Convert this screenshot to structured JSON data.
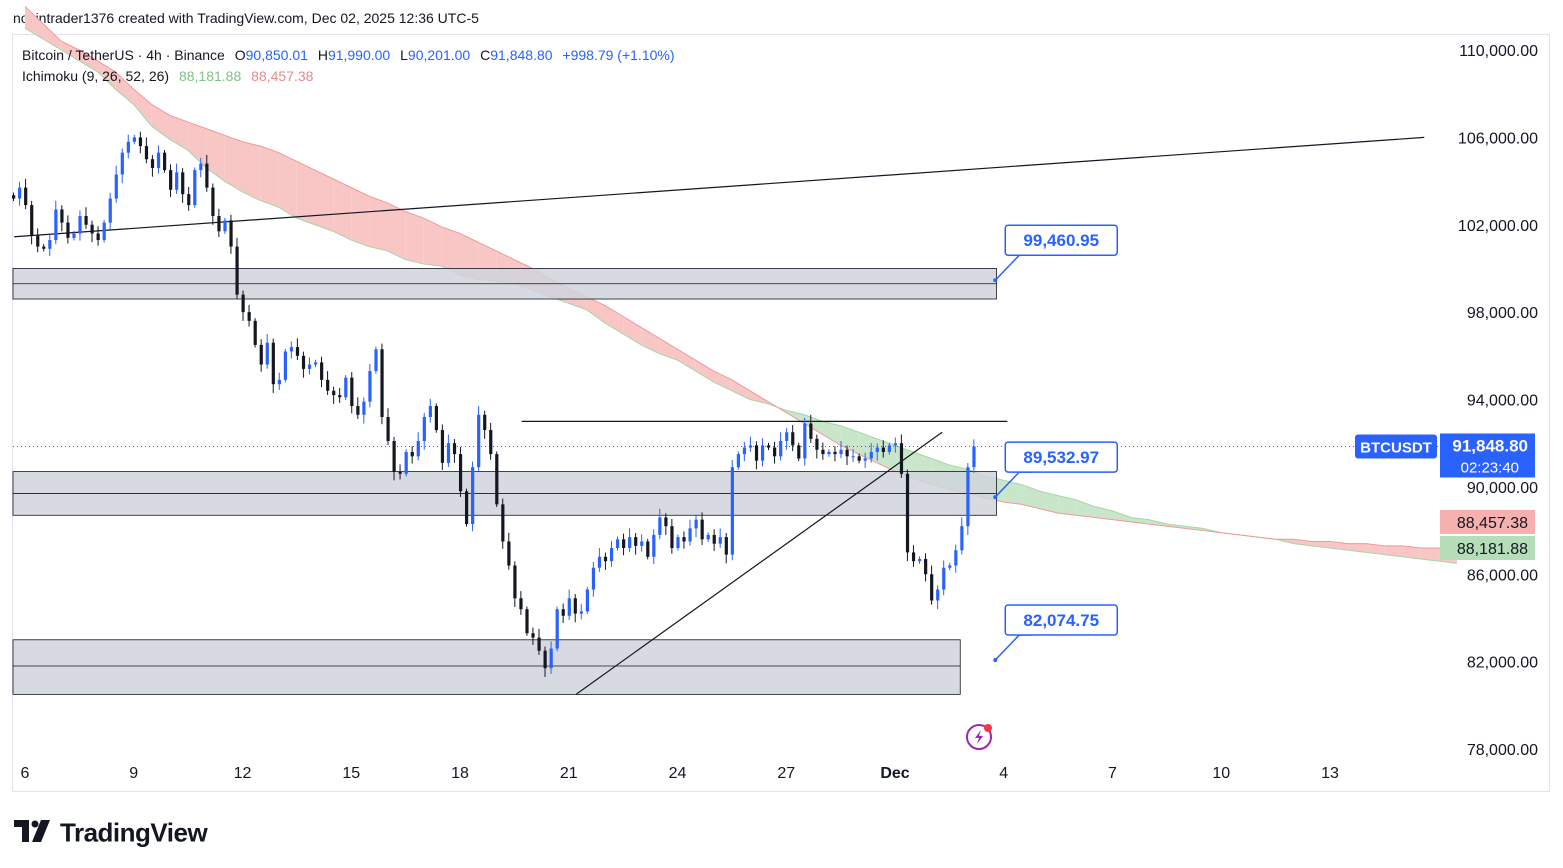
{
  "header": {
    "credit": "novintrader1376 created with TradingView.com, Dec 02, 2025 12:36 UTC-5"
  },
  "legend": {
    "symbol": "Bitcoin / TetherUS · 4h · Binance",
    "o_label": "O",
    "o": "90,850.01",
    "h_label": "H",
    "h": "91,990.00",
    "l_label": "L",
    "l": "90,201.00",
    "c_label": "C",
    "c": "91,848.80",
    "change": "+998.79 (+1.10%)",
    "indicator": "Ichimoku (9, 26, 52, 26)",
    "ind_v1": "88,181.88",
    "ind_v2": "88,457.38"
  },
  "colors": {
    "up": "#2962ff",
    "down": "#131722",
    "cloud_bear": "#f9c6c6",
    "cloud_bull": "#c9e6cb",
    "accent": "#2962ff",
    "red_tag": "#f7b0b0",
    "green_tag": "#b5deb8",
    "zone": "#d1d4dc"
  },
  "chart_data": {
    "type": "candlestick",
    "title": "Bitcoin / TetherUS · 4h · Binance",
    "yaxis": {
      "ticks": [
        110000,
        106000,
        102000,
        98000,
        94000,
        90000,
        86000,
        82000,
        78000
      ],
      "tick_labels": [
        "110,000.00",
        "106,000.00",
        "102,000.00",
        "98,000.00",
        "94,000.00",
        "90,000.00",
        "86,000.00",
        "82,000.00",
        "78,000.00"
      ],
      "range": [
        77500,
        111500
      ]
    },
    "xaxis": {
      "labels": [
        "6",
        "9",
        "12",
        "15",
        "18",
        "21",
        "24",
        "27",
        "Dec",
        "4",
        "7",
        "10",
        "13"
      ],
      "label_day_index": [
        0,
        3,
        6,
        9,
        12,
        15,
        18,
        21,
        24,
        27,
        30,
        33,
        36
      ]
    },
    "last_price": {
      "symbol": "BTCUSDT",
      "price": "91,848.80",
      "countdown": "02:23:40",
      "value": 91848.8
    },
    "ichimoku_tags": [
      {
        "label": "88,457.38",
        "value": 88457.38,
        "kind": "red"
      },
      {
        "label": "88,181.88",
        "value": 88181.88,
        "kind": "green"
      }
    ],
    "callouts": [
      {
        "label": "99,460.95",
        "value": 99460.95
      },
      {
        "label": "89,532.97",
        "value": 89532.97
      },
      {
        "label": "82,074.75",
        "value": 82074.75
      }
    ],
    "zones": [
      {
        "top": 100000,
        "bottom": 98600,
        "mid": 99300,
        "end_day": 26.8
      },
      {
        "top": 90700,
        "bottom": 88700,
        "mid": 89700,
        "end_day": 26.8
      },
      {
        "top": 83000,
        "bottom": 80500,
        "mid": 81800,
        "end_day": 25.8
      }
    ],
    "lines": [
      {
        "d1": -0.3,
        "p1": 101450,
        "d2": 38.6,
        "p2": 106000
      },
      {
        "d1": 15.2,
        "p1": 80500,
        "d2": 25.3,
        "p2": 92500
      },
      {
        "d1": 13.7,
        "p1": 93000,
        "d2": 27.1,
        "p2": 93000
      }
    ],
    "closes": [
      103200,
      103700,
      102900,
      101500,
      101000,
      100900,
      101300,
      102700,
      102100,
      101400,
      101600,
      102400,
      102000,
      101600,
      101300,
      102100,
      103200,
      104300,
      105300,
      105800,
      106000,
      105600,
      105000,
      104600,
      105300,
      104500,
      103600,
      104400,
      103400,
      102900,
      104500,
      104800,
      103700,
      102400,
      101700,
      102200,
      101000,
      98800,
      98000,
      97600,
      96500,
      95600,
      96600,
      94700,
      94900,
      96200,
      96400,
      96000,
      95400,
      95600,
      95700,
      94900,
      94400,
      94200,
      94100,
      95000,
      93700,
      93300,
      93900,
      95300,
      96300,
      93200,
      92100,
      90700,
      90600,
      91600,
      91400,
      92100,
      93200,
      93700,
      92600,
      91100,
      92000,
      91500,
      89800,
      88300,
      90900,
      93300,
      92600,
      91500,
      89200,
      87500,
      86400,
      84900,
      84400,
      83300,
      83100,
      82500,
      81700,
      82600,
      84400,
      84100,
      84900,
      84200,
      84300,
      85300,
      86300,
      86800,
      86600,
      87200,
      87600,
      87200,
      87700,
      87300,
      87500,
      86800,
      87800,
      88600,
      88200,
      87200,
      87700,
      87500,
      88100,
      88500,
      87600,
      87800,
      87400,
      87700,
      86900,
      90900,
      91500,
      91800,
      91900,
      91200,
      91900,
      91800,
      91400,
      92100,
      92500,
      91900,
      91300,
      92900,
      92200,
      91700,
      91500,
      91600,
      91500,
      91700,
      91400,
      91400,
      91200,
      91300,
      91600,
      91800,
      91600,
      91900,
      92000,
      90600,
      87000,
      86600,
      86700,
      86000,
      84800,
      85300,
      86300,
      86400,
      87100,
      88200,
      90900,
      91849
    ],
    "cloud": {
      "start_day": 0,
      "a": [
        111000,
        110500,
        110000,
        109500,
        109000,
        108200,
        107500,
        106500,
        105900,
        105400,
        104600,
        104000,
        103500,
        103100,
        102800,
        102300,
        102000,
        101700,
        101300,
        101000,
        100800,
        100400,
        100200,
        100100,
        99700,
        99500,
        99400,
        99300,
        99000,
        98700,
        98400,
        98100,
        97500,
        97000,
        96500,
        96100,
        95800,
        95300,
        94800,
        94400,
        94000,
        93800,
        93500,
        93300,
        93000,
        92800,
        92500,
        92200,
        91900,
        91600,
        91300,
        91000,
        90800,
        90500,
        90300,
        90100,
        89800,
        89600,
        89400,
        89100,
        88900,
        88600,
        88500,
        88300,
        88200,
        88100,
        87900,
        87800,
        87700,
        87600,
        87400,
        87300,
        87200,
        87100,
        87000,
        86900,
        86800,
        86700,
        86600,
        86500
      ],
      "b": [
        112000,
        111200,
        110400,
        110000,
        109500,
        109000,
        108200,
        107500,
        107000,
        106700,
        106400,
        106100,
        105800,
        105600,
        105300,
        104900,
        104500,
        104100,
        103700,
        103300,
        103000,
        102600,
        102300,
        101900,
        101600,
        101200,
        100800,
        100400,
        100000,
        99500,
        99100,
        98700,
        98300,
        97800,
        97300,
        96800,
        96300,
        95800,
        95300,
        94900,
        94400,
        93900,
        93400,
        92900,
        92400,
        91900,
        91500,
        91100,
        90700,
        90400,
        90100,
        89900,
        89700,
        89500,
        89300,
        89200,
        89000,
        88800,
        88700,
        88600,
        88500,
        88400,
        88300,
        88200,
        88100,
        88000,
        87900,
        87800,
        87700,
        87600,
        87600,
        87500,
        87500,
        87400,
        87400,
        87300,
        87300,
        87200,
        87200,
        87100
      ]
    }
  },
  "footer": {
    "brand": "TradingView"
  }
}
